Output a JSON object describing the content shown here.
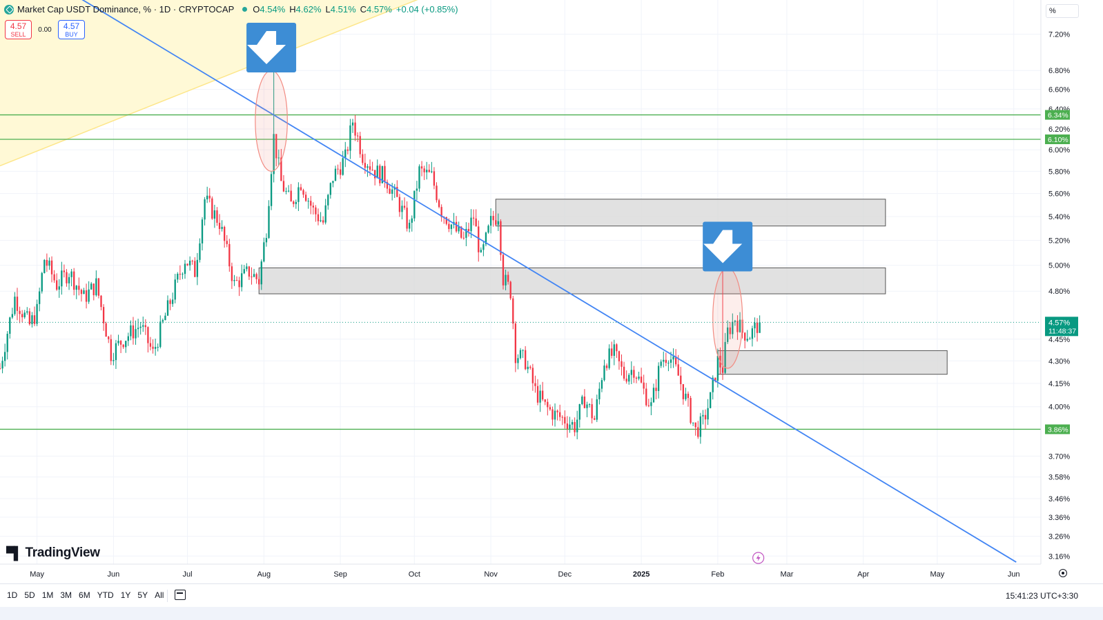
{
  "header": {
    "title": "Market Cap USDT Dominance, % · 1D · CRYPTOCAP",
    "ohlc": {
      "o_label": "O",
      "o": "4.54%",
      "h_label": "H",
      "h": "4.62%",
      "l_label": "L",
      "l": "4.51%",
      "c_label": "C",
      "c": "4.57%",
      "change": "+0.04 (+0.85%)"
    }
  },
  "trade": {
    "sell_price": "4.57",
    "sell_label": "SELL",
    "spread": "0.00",
    "buy_price": "4.57",
    "buy_label": "BUY"
  },
  "scale_mode": "%",
  "branding": {
    "logo_text": "TradingView"
  },
  "bottom_bar": {
    "ranges": [
      "1D",
      "5D",
      "1M",
      "3M",
      "6M",
      "YTD",
      "1Y",
      "5Y",
      "All"
    ],
    "clock": "15:41:23 UTC+3:30"
  },
  "colors": {
    "up": "#089981",
    "down": "#f23645",
    "trendline": "#4285f4",
    "level_line": "#4caf50",
    "zone_fill": "#d9d9d9",
    "arrow_box": "#3d8dd5",
    "triangle_fill": "#fff9d6",
    "triangle_line": "#fde68a",
    "ellipse": "#f28b82"
  },
  "chart_data": {
    "type": "candlestick",
    "symbol": "USDT.D",
    "interval": "1D",
    "y_scale": "log",
    "ylim": [
      3.12,
      7.6
    ],
    "xlim": [
      "2024-04-16",
      "2025-06-12"
    ],
    "x_ticks": [
      "May",
      "Jun",
      "Jul",
      "Aug",
      "Sep",
      "Oct",
      "Nov",
      "Dec",
      "2025",
      "Feb",
      "Mar",
      "Apr",
      "May",
      "Jun"
    ],
    "x_tick_dates": [
      "2024-05-01",
      "2024-06-01",
      "2024-07-01",
      "2024-08-01",
      "2024-09-01",
      "2024-10-01",
      "2024-11-01",
      "2024-12-01",
      "2025-01-01",
      "2025-02-01",
      "2025-03-01",
      "2025-04-01",
      "2025-05-01",
      "2025-06-01"
    ],
    "y_ticks": [
      "7.20%",
      "6.80%",
      "6.60%",
      "6.40%",
      "6.20%",
      "6.00%",
      "5.80%",
      "5.60%",
      "5.40%",
      "5.20%",
      "5.00%",
      "4.80%",
      "4.45%",
      "4.30%",
      "4.15%",
      "4.00%",
      "3.70%",
      "3.58%",
      "3.46%",
      "3.36%",
      "3.26%",
      "3.16%"
    ],
    "y_tick_values": [
      7.2,
      6.8,
      6.6,
      6.4,
      6.2,
      6.0,
      5.8,
      5.6,
      5.4,
      5.2,
      5.0,
      4.8,
      4.45,
      4.3,
      4.15,
      4.0,
      3.7,
      3.58,
      3.46,
      3.36,
      3.26,
      3.16
    ],
    "last_price": {
      "value": 4.57,
      "label": "4.57%",
      "countdown": "11:48:37"
    },
    "ohlc_last": {
      "open": 4.54,
      "high": 4.62,
      "low": 4.51,
      "close": 4.57,
      "change": 0.04,
      "change_pct": 0.85
    },
    "price_path": [
      [
        "2024-04-16",
        4.25
      ],
      [
        "2024-04-22",
        4.75
      ],
      [
        "2024-04-28",
        4.55
      ],
      [
        "2024-05-01",
        4.65
      ],
      [
        "2024-05-04",
        5.05
      ],
      [
        "2024-05-09",
        4.85
      ],
      [
        "2024-05-14",
        4.95
      ],
      [
        "2024-05-20",
        4.75
      ],
      [
        "2024-05-25",
        4.85
      ],
      [
        "2024-05-31",
        4.35
      ],
      [
        "2024-06-05",
        4.45
      ],
      [
        "2024-06-12",
        4.55
      ],
      [
        "2024-06-17",
        4.35
      ],
      [
        "2024-06-24",
        4.72
      ],
      [
        "2024-06-30",
        5.05
      ],
      [
        "2024-07-04",
        4.95
      ],
      [
        "2024-07-08",
        5.55
      ],
      [
        "2024-07-14",
        5.35
      ],
      [
        "2024-07-20",
        4.85
      ],
      [
        "2024-07-26",
        4.95
      ],
      [
        "2024-07-30",
        4.88
      ],
      [
        "2024-08-02",
        5.3
      ],
      [
        "2024-08-05",
        6.12
      ],
      [
        "2024-08-08",
        5.7
      ],
      [
        "2024-08-12",
        5.5
      ],
      [
        "2024-08-16",
        5.7
      ],
      [
        "2024-08-21",
        5.45
      ],
      [
        "2024-08-25",
        5.35
      ],
      [
        "2024-08-29",
        5.75
      ],
      [
        "2024-09-03",
        5.92
      ],
      [
        "2024-09-06",
        6.28
      ],
      [
        "2024-09-10",
        5.95
      ],
      [
        "2024-09-15",
        5.8
      ],
      [
        "2024-09-19",
        5.75
      ],
      [
        "2024-09-25",
        5.5
      ],
      [
        "2024-09-29",
        5.3
      ],
      [
        "2024-10-03",
        5.8
      ],
      [
        "2024-10-08",
        5.75
      ],
      [
        "2024-10-12",
        5.45
      ],
      [
        "2024-10-17",
        5.3
      ],
      [
        "2024-10-21",
        5.2
      ],
      [
        "2024-10-25",
        5.4
      ],
      [
        "2024-10-28",
        5.05
      ],
      [
        "2024-11-01",
        5.35
      ],
      [
        "2024-11-04",
        5.42
      ],
      [
        "2024-11-06",
        4.9
      ],
      [
        "2024-11-09",
        4.8
      ],
      [
        "2024-11-11",
        4.35
      ],
      [
        "2024-11-15",
        4.3
      ],
      [
        "2024-11-19",
        4.1
      ],
      [
        "2024-11-23",
        4.0
      ],
      [
        "2024-11-27",
        3.95
      ],
      [
        "2024-12-01",
        3.92
      ],
      [
        "2024-12-05",
        3.88
      ],
      [
        "2024-12-09",
        4.05
      ],
      [
        "2024-12-13",
        3.92
      ],
      [
        "2024-12-17",
        4.3
      ],
      [
        "2024-12-21",
        4.35
      ],
      [
        "2024-12-25",
        4.2
      ],
      [
        "2024-12-29",
        4.25
      ],
      [
        "2025-01-02",
        4.1
      ],
      [
        "2025-01-05",
        4.0
      ],
      [
        "2025-01-09",
        4.3
      ],
      [
        "2025-01-12",
        4.35
      ],
      [
        "2025-01-16",
        4.2
      ],
      [
        "2025-01-20",
        4.0
      ],
      [
        "2025-01-23",
        3.85
      ],
      [
        "2025-01-26",
        3.9
      ],
      [
        "2025-01-29",
        4.05
      ],
      [
        "2025-02-01",
        4.3
      ],
      [
        "2025-02-03",
        4.25
      ],
      [
        "2025-02-05",
        4.5
      ],
      [
        "2025-02-08",
        4.6
      ],
      [
        "2025-02-11",
        4.5
      ],
      [
        "2025-02-14",
        4.48
      ],
      [
        "2025-02-18",
        4.57
      ]
    ],
    "horizontal_levels": [
      {
        "value": 6.34,
        "label": "6.34%"
      },
      {
        "value": 6.1,
        "label": "6.10%"
      },
      {
        "value": 3.86,
        "label": "3.86%"
      }
    ],
    "zones": [
      {
        "from": "2024-11-03",
        "to": "2025-04-10",
        "low": 5.32,
        "high": 5.55
      },
      {
        "from": "2024-07-30",
        "to": "2025-04-10",
        "low": 4.78,
        "high": 4.98
      },
      {
        "from": "2025-02-01",
        "to": "2025-05-05",
        "low": 4.21,
        "high": 4.37
      }
    ],
    "trendline": {
      "from": [
        "2024-04-12",
        8.3
      ],
      "to": [
        "2025-06-02",
        3.13
      ]
    },
    "triangle_edge": {
      "from": [
        "2024-04-16",
        5.85
      ],
      "to": [
        "2024-11-08",
        8.05
      ]
    },
    "ellipses": [
      {
        "center": [
          "2024-08-04",
          6.3
        ],
        "rx_days": 6.5,
        "ry_low": 5.8,
        "ry_high": 6.8
      },
      {
        "center": [
          "2025-02-05",
          4.55
        ],
        "rx_days": 6,
        "ry_low": 4.25,
        "ry_high": 4.98
      }
    ],
    "arrows": [
      {
        "date": "2024-08-04",
        "value": 7.05,
        "direction": "down"
      },
      {
        "date": "2025-02-05",
        "value": 5.15,
        "direction": "down"
      }
    ]
  }
}
